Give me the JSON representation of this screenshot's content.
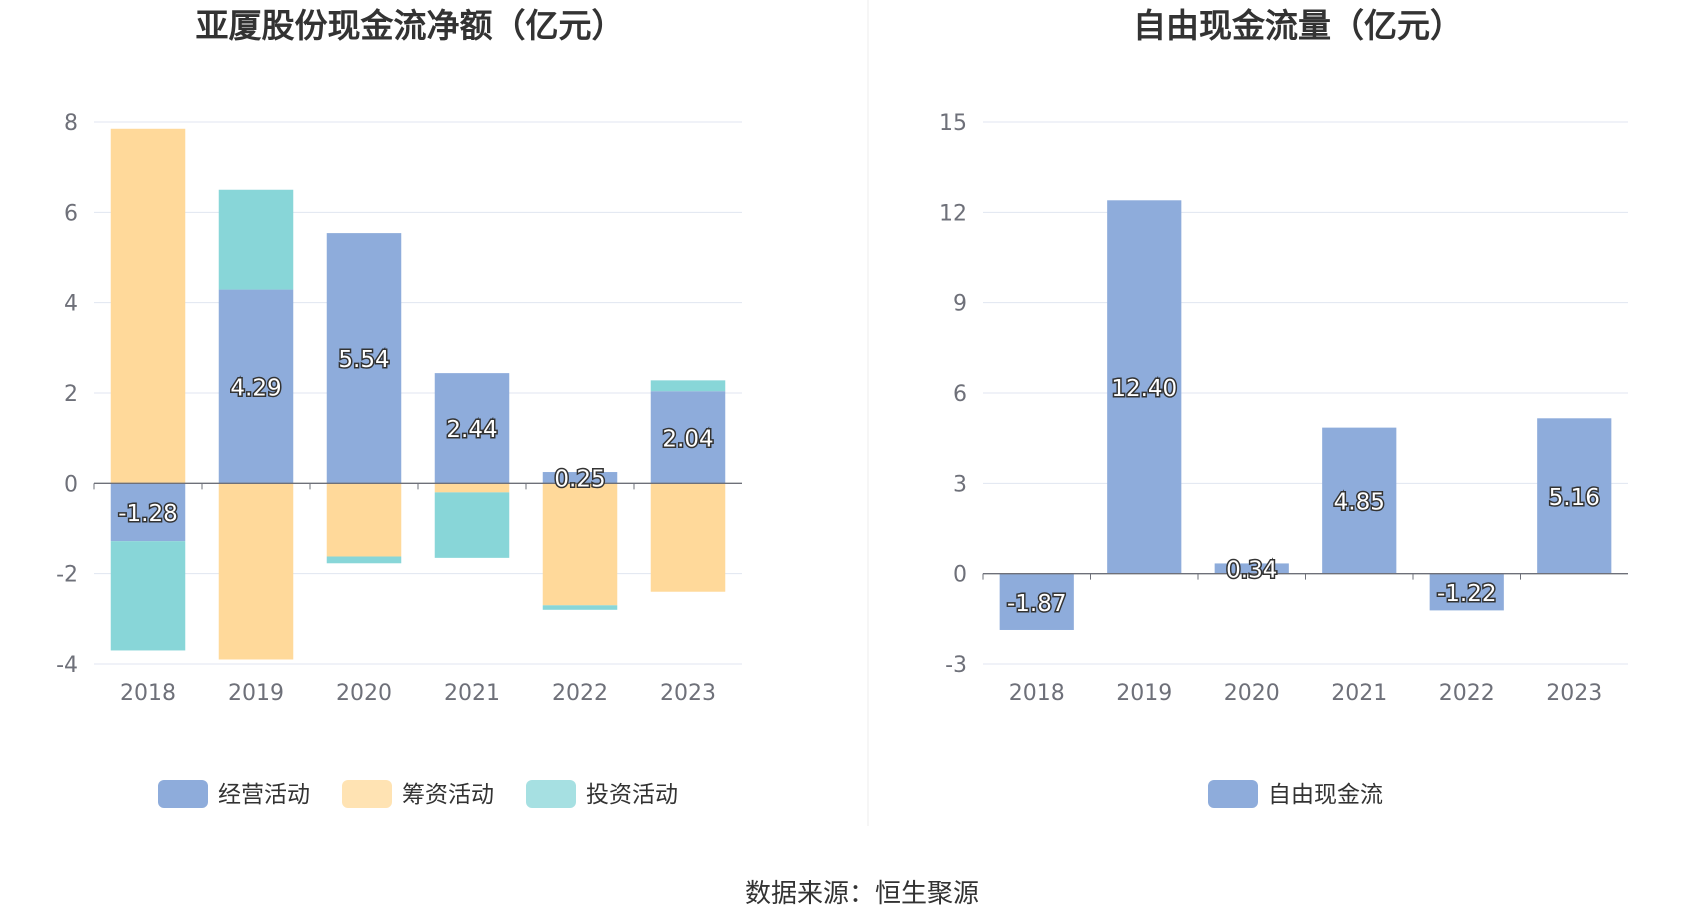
{
  "source_text": "数据来源：恒生聚源",
  "chart_data": [
    {
      "type": "bar",
      "stacked": true,
      "title": "亚厦股份现金流净额（亿元）",
      "categories": [
        "2018",
        "2019",
        "2020",
        "2021",
        "2022",
        "2023"
      ],
      "ylim": [
        -4,
        8
      ],
      "yticks": [
        -4,
        -2,
        0,
        2,
        4,
        6,
        8
      ],
      "grid": true,
      "legend_position": "bottom",
      "series": [
        {
          "name": "经营活动",
          "color": "#8eacdb",
          "values": [
            -1.28,
            4.29,
            5.54,
            2.44,
            0.25,
            2.04
          ],
          "labels": [
            "-1.28",
            "4.29",
            "5.54",
            "2.44",
            "0.25",
            "2.04"
          ]
        },
        {
          "name": "筹资活动",
          "color": "#ffd99a",
          "values": [
            7.85,
            -3.9,
            -1.62,
            -0.2,
            -2.7,
            -2.4
          ]
        },
        {
          "name": "投资活动",
          "color": "#88d6d8",
          "values": [
            -2.42,
            2.21,
            -0.15,
            -1.45,
            -0.1,
            0.24
          ]
        }
      ]
    },
    {
      "type": "bar",
      "title": "自由现金流量（亿元）",
      "categories": [
        "2018",
        "2019",
        "2020",
        "2021",
        "2022",
        "2023"
      ],
      "ylim": [
        -3,
        15
      ],
      "yticks": [
        -3,
        0,
        3,
        6,
        9,
        12,
        15
      ],
      "grid": true,
      "legend_position": "bottom",
      "series": [
        {
          "name": "自由现金流",
          "color": "#8eacdb",
          "values": [
            -1.87,
            12.4,
            0.34,
            4.85,
            -1.22,
            5.16
          ],
          "labels": [
            "-1.87",
            "12.40",
            "0.34",
            "4.85",
            "-1.22",
            "5.16"
          ]
        }
      ]
    }
  ]
}
